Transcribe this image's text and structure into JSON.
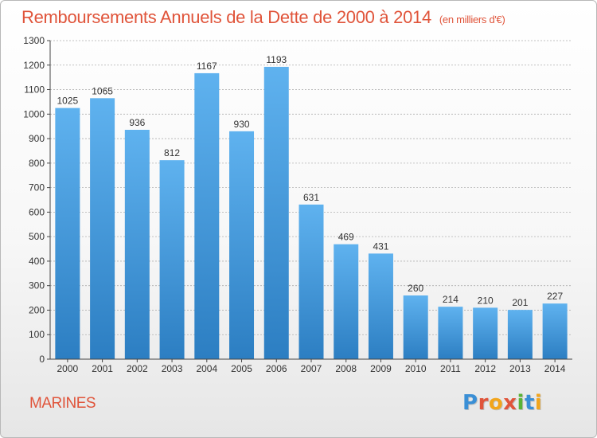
{
  "header": {
    "title": "Remboursements Annuels de la Dette de 2000 à 2014",
    "unit": "(en milliers d'€)"
  },
  "footer": {
    "place": "MARINES",
    "logo": "Proxiti",
    "logo_colors": [
      "#3a8fd6",
      "#e0543a",
      "#f2a51c",
      "#e0543a",
      "#59b336",
      "#3a8fd6",
      "#f2a51c"
    ]
  },
  "colors": {
    "bar_top": "#5fb2ef",
    "bar_bottom": "#2c7ec2",
    "title": "#e0543a",
    "grid": "#b0b0b0"
  },
  "chart_data": {
    "type": "bar",
    "title": "Remboursements Annuels de la Dette de 2000 à 2014",
    "xlabel": "",
    "ylabel": "",
    "categories": [
      "2000",
      "2001",
      "2002",
      "2003",
      "2004",
      "2005",
      "2006",
      "2007",
      "2008",
      "2009",
      "2010",
      "2011",
      "2012",
      "2013",
      "2014"
    ],
    "values": [
      1025,
      1065,
      936,
      812,
      1167,
      930,
      1193,
      631,
      469,
      431,
      260,
      214,
      210,
      201,
      227
    ],
    "ylim": [
      0,
      1300
    ],
    "yticks": [
      0,
      100,
      200,
      300,
      400,
      500,
      600,
      700,
      800,
      900,
      1000,
      1100,
      1200,
      1300
    ],
    "grid": true,
    "data_labels": true
  }
}
